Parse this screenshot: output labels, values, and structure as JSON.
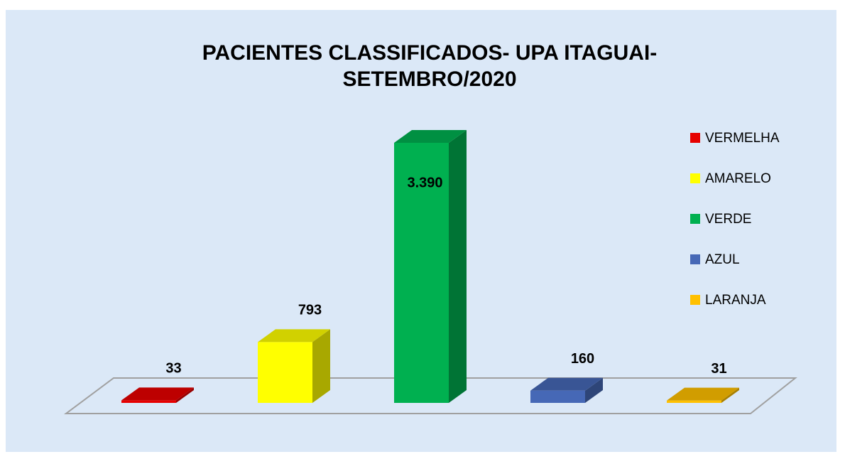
{
  "chart_data": {
    "type": "bar3d",
    "title": "PACIENTES CLASSIFICADOS- UPA ITAGUAI-",
    "subtitle": "SETEMBRO/2020",
    "categories": [
      "VERMELHA",
      "AMARELO",
      "VERDE",
      "AZUL",
      "LARANJA"
    ],
    "values": [
      33,
      793,
      3390,
      160,
      31
    ],
    "value_labels": [
      "33",
      "793",
      "3.390",
      "160",
      "31"
    ],
    "colors": [
      "#e60000",
      "#ffff00",
      "#00b050",
      "#4668b6",
      "#ffc000"
    ],
    "legend": "right"
  }
}
